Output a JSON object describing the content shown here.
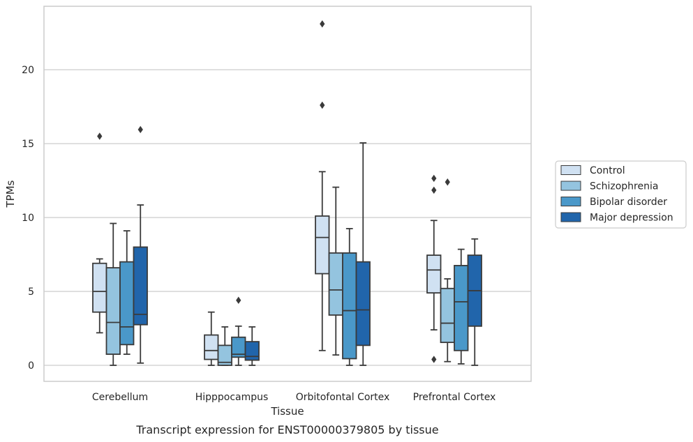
{
  "caption": "Transcript expression for ENST00000379805 by tissue",
  "colors": {
    "Control": "#d0e1f2",
    "Schizophrenia": "#94c4df",
    "Bipolar disorder": "#4a98c9",
    "Major depression": "#2165ab",
    "line": "#3a3a3a",
    "grid": "#cccccc",
    "frame": "#cccccc"
  },
  "chart_data": {
    "type": "box",
    "title": "",
    "xlabel": "Tissue",
    "ylabel": "TPMs",
    "ylim": [
      -1.1,
      24.2
    ],
    "yticks": [
      0,
      5,
      10,
      15,
      20
    ],
    "grid": "horizontal",
    "legend_position": "right",
    "categories": [
      "Cerebellum",
      "Hipppocampus",
      "Orbitofontal Cortex",
      "Prefrontal Cortex"
    ],
    "series": [
      {
        "name": "Control",
        "boxes": [
          {
            "whislo": 2.2,
            "q1": 3.6,
            "med": 5.0,
            "q3": 6.9,
            "whishi": 7.2,
            "fliers": [
              15.5
            ]
          },
          {
            "whislo": 0.0,
            "q1": 0.4,
            "med": 1.0,
            "q3": 2.05,
            "whishi": 3.6,
            "fliers": []
          },
          {
            "whislo": 1.0,
            "q1": 6.2,
            "med": 8.65,
            "q3": 10.1,
            "whishi": 13.1,
            "fliers": [
              17.6,
              23.1
            ]
          },
          {
            "whislo": 2.4,
            "q1": 4.9,
            "med": 6.45,
            "q3": 7.45,
            "whishi": 9.8,
            "fliers": [
              12.65,
              11.85,
              0.4
            ]
          }
        ]
      },
      {
        "name": "Schizophrenia",
        "boxes": [
          {
            "whislo": 0.0,
            "q1": 0.75,
            "med": 2.9,
            "q3": 6.6,
            "whishi": 9.6,
            "fliers": []
          },
          {
            "whislo": 0.0,
            "q1": 0.0,
            "med": 0.2,
            "q3": 1.35,
            "whishi": 2.6,
            "fliers": []
          },
          {
            "whislo": 0.7,
            "q1": 3.4,
            "med": 5.1,
            "q3": 7.6,
            "whishi": 12.05,
            "fliers": []
          },
          {
            "whislo": 0.25,
            "q1": 1.55,
            "med": 2.85,
            "q3": 5.2,
            "whishi": 5.85,
            "fliers": [
              12.4
            ]
          }
        ]
      },
      {
        "name": "Bipolar disorder",
        "boxes": [
          {
            "whislo": 0.75,
            "q1": 1.4,
            "med": 2.6,
            "q3": 7.0,
            "whishi": 9.1,
            "fliers": []
          },
          {
            "whislo": 0.0,
            "q1": 0.55,
            "med": 0.75,
            "q3": 1.9,
            "whishi": 2.65,
            "fliers": [
              4.4
            ]
          },
          {
            "whislo": 0.0,
            "q1": 0.45,
            "med": 3.7,
            "q3": 7.6,
            "whishi": 9.25,
            "fliers": []
          },
          {
            "whislo": 0.1,
            "q1": 1.0,
            "med": 4.3,
            "q3": 6.75,
            "whishi": 7.85,
            "fliers": []
          }
        ]
      },
      {
        "name": "Major depression",
        "boxes": [
          {
            "whislo": 0.15,
            "q1": 2.75,
            "med": 3.45,
            "q3": 8.0,
            "whishi": 10.85,
            "fliers": [
              15.95
            ]
          },
          {
            "whislo": 0.0,
            "q1": 0.35,
            "med": 0.6,
            "q3": 1.6,
            "whishi": 2.6,
            "fliers": []
          },
          {
            "whislo": 0.0,
            "q1": 1.35,
            "med": 3.75,
            "q3": 7.0,
            "whishi": 15.05,
            "fliers": []
          },
          {
            "whislo": 0.0,
            "q1": 2.65,
            "med": 5.05,
            "q3": 7.45,
            "whishi": 8.55,
            "fliers": []
          }
        ]
      }
    ]
  }
}
